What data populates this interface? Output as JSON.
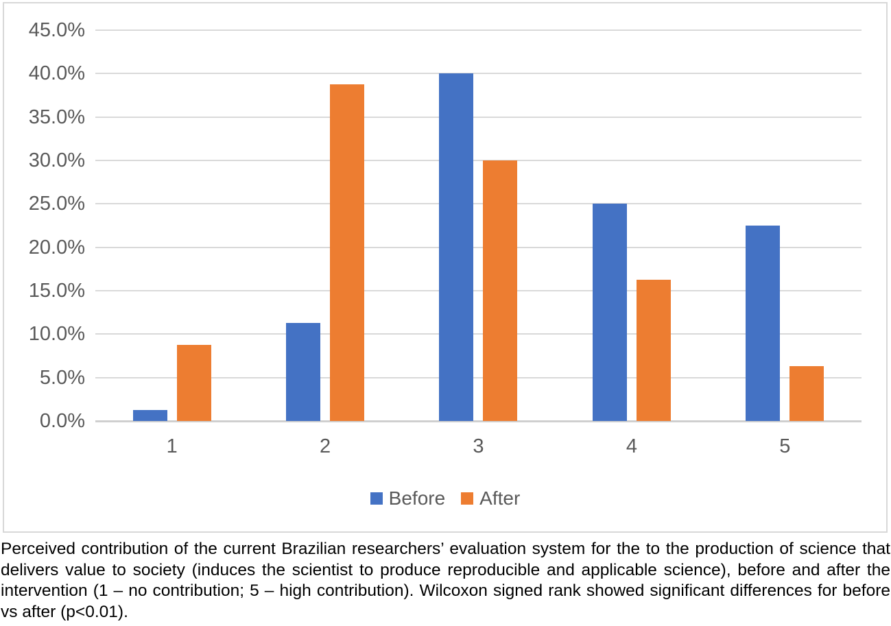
{
  "figure": {
    "caption": "Perceived contribution of the current Brazilian researchers’ evaluation system for the to the production of science that delivers value to society (induces the scientist to produce reproducible and applicable science), before and after the intervention (1 – no contribution; 5 – high contribution). Wilcoxon signed rank showed significant differences for before vs after (p<0.01)."
  },
  "chart_data": {
    "type": "bar",
    "title": "",
    "xlabel": "",
    "ylabel": "",
    "categories": [
      "1",
      "2",
      "3",
      "4",
      "5"
    ],
    "series": [
      {
        "name": "Before",
        "color": "#4472C4",
        "values": [
          1.3,
          11.3,
          40.0,
          25.0,
          22.5
        ]
      },
      {
        "name": "After",
        "color": "#ED7D31",
        "values": [
          8.8,
          38.8,
          30.0,
          16.3,
          6.3
        ]
      }
    ],
    "value_unit": "%",
    "ylim": [
      0,
      45
    ],
    "y_tick_step": 5,
    "y_ticks": [
      "45.0%",
      "40.0%",
      "35.0%",
      "30.0%",
      "25.0%",
      "20.0%",
      "15.0%",
      "10.0%",
      "5.0%",
      "0.0%"
    ],
    "grid": true,
    "legend_position": "bottom"
  },
  "colors": {
    "before": "#4472C4",
    "after": "#ED7D31",
    "gridline": "#D9D9D9",
    "tick_label": "#595959",
    "chart_border": "#D8D8D8",
    "caption_text": "#000000"
  }
}
